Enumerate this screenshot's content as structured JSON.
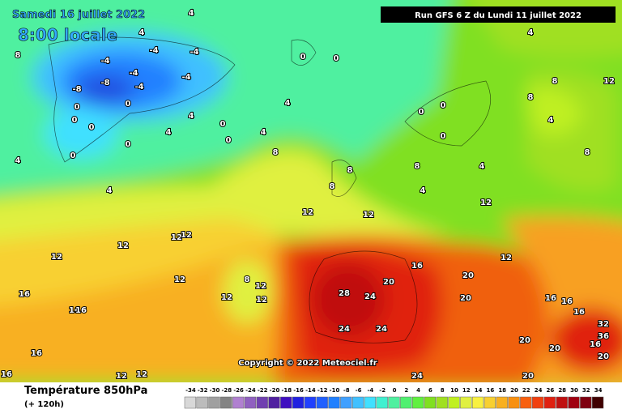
{
  "header": {
    "date": "Samedi 16 juillet 2022",
    "time": "8:00 locale",
    "run": "Run GFS 6 Z du Lundi 11 juillet 2022"
  },
  "copyright": "Copyright © 2022 Meteociel.fr",
  "footer": {
    "title": "Température 850hPa",
    "lead": "(+ 120h)"
  },
  "scale": {
    "ticks": [
      -34,
      -32,
      -30,
      -28,
      -26,
      -24,
      -22,
      -20,
      -18,
      -16,
      -14,
      -12,
      -10,
      -8,
      -6,
      -4,
      -2,
      0,
      2,
      4,
      6,
      8,
      10,
      12,
      14,
      16,
      18,
      20,
      22,
      24,
      26,
      28,
      30,
      32,
      34
    ],
    "colors": [
      "#d8d8d8",
      "#bcbcbc",
      "#a0a0a0",
      "#848484",
      "#b080d0",
      "#9060c0",
      "#7040b0",
      "#5020a0",
      "#4010c0",
      "#2020e0",
      "#2040ff",
      "#2060ff",
      "#2080ff",
      "#40a0ff",
      "#40c0ff",
      "#40e0ff",
      "#40f0d0",
      "#50f0a0",
      "#50f070",
      "#60f040",
      "#80e020",
      "#a0e020",
      "#c0f020",
      "#e0f040",
      "#f8f040",
      "#f8d030",
      "#f8b020",
      "#f89010",
      "#f86010",
      "#f04010",
      "#e02010",
      "#c01010",
      "#a00010",
      "#800010",
      "#400000"
    ]
  },
  "map_labels": [
    "4",
    "4",
    "-4",
    "-4",
    "-4",
    "-4",
    "-4",
    "-8",
    "-4",
    "-8",
    "0",
    "0",
    "0",
    "0",
    "0",
    "0",
    "4",
    "4",
    "0",
    "0",
    "4",
    "4",
    "8",
    "4",
    "4",
    "8",
    "4",
    "8",
    "12",
    "8",
    "4",
    "8",
    "4",
    "0",
    "0",
    "0",
    "0",
    "0",
    "8",
    "8",
    "8",
    "4",
    "12",
    "12",
    "12",
    "12",
    "12",
    "12",
    "12",
    "12",
    "8",
    "12",
    "12",
    "12",
    "16",
    "16",
    "16",
    "16",
    "16",
    "12",
    "12",
    "28",
    "24",
    "20",
    "16",
    "20",
    "12",
    "24",
    "24",
    "20",
    "16",
    "16",
    "16",
    "32",
    "36",
    "16",
    "20",
    "20",
    "20",
    "24",
    "20"
  ]
}
